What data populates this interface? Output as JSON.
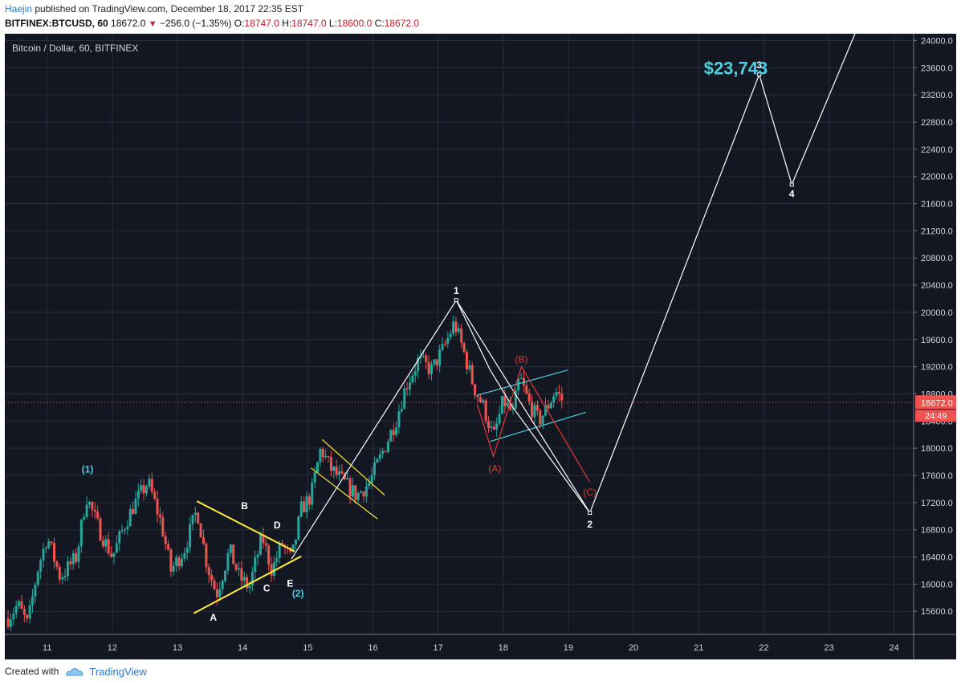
{
  "header": {
    "author": "Haejin",
    "published_text": "published on TradingView.com, December 18, 2017 22:35 EST",
    "symbol": "BITFINEX:BTCUSD, 60",
    "last": "18672.0",
    "change": "−256.0 (−1.35%)",
    "open_label": "O:",
    "open": "18747.0",
    "high_label": "H:",
    "high": "18747.0",
    "low_label": "L:",
    "low": "18600.0",
    "close_label": "C:",
    "close": "18672.0"
  },
  "footer": {
    "created_with": "Created with",
    "brand": "TradingView"
  },
  "colors": {
    "background": "#131722",
    "grid": "#2a2e39",
    "up": "#26a69a",
    "down": "#ef5350",
    "yellow": "#ffeb3b",
    "cyan": "#4dd0e1",
    "white": "#ffffff",
    "red_wave": "#e53935",
    "price_tag": "#ef5350"
  },
  "chart_data": {
    "type": "candlestick",
    "title": "Bitcoin / Dollar, 60, BITFINEX",
    "price_tag": "18672.0",
    "countdown": "24:49",
    "x_ticks": [
      "11",
      "12",
      "13",
      "14",
      "15",
      "16",
      "17",
      "18",
      "19",
      "20",
      "21",
      "22",
      "23",
      "24"
    ],
    "x_tick_values": [
      11,
      12,
      13,
      14,
      15,
      16,
      17,
      18,
      19,
      20,
      21,
      22,
      23,
      24
    ],
    "xlim": [
      10.35,
      24.3
    ],
    "y_ticks": [
      "15600.0",
      "16000.0",
      "16400.0",
      "16800.0",
      "17200.0",
      "17600.0",
      "18000.0",
      "18400.0",
      "18800.0",
      "19200.0",
      "19600.0",
      "20000.0",
      "20400.0",
      "20800.0",
      "21200.0",
      "21600.0",
      "22000.0",
      "22400.0",
      "22800.0",
      "23200.0",
      "23600.0",
      "24000.0"
    ],
    "ylim": [
      15260,
      24100
    ],
    "price_path": [
      [
        10.4,
        15500
      ],
      [
        10.55,
        15700
      ],
      [
        10.7,
        15400
      ],
      [
        10.85,
        16200
      ],
      [
        11.0,
        16700
      ],
      [
        11.2,
        16100
      ],
      [
        11.45,
        16400
      ],
      [
        11.6,
        17300
      ],
      [
        11.8,
        16800
      ],
      [
        12.0,
        16400
      ],
      [
        12.2,
        16900
      ],
      [
        12.35,
        17200
      ],
      [
        12.55,
        17500
      ],
      [
        12.75,
        16900
      ],
      [
        12.9,
        16200
      ],
      [
        13.1,
        16500
      ],
      [
        13.3,
        17100
      ],
      [
        13.45,
        16300
      ],
      [
        13.6,
        15850
      ],
      [
        13.8,
        16500
      ],
      [
        13.95,
        16100
      ],
      [
        14.1,
        15950
      ],
      [
        14.3,
        16700
      ],
      [
        14.45,
        16200
      ],
      [
        14.6,
        16600
      ],
      [
        14.75,
        16350
      ],
      [
        14.9,
        17100
      ],
      [
        15.05,
        17300
      ],
      [
        15.2,
        18000
      ],
      [
        15.35,
        17700
      ],
      [
        15.55,
        17500
      ],
      [
        15.75,
        17300
      ],
      [
        15.95,
        17500
      ],
      [
        16.15,
        17950
      ],
      [
        16.35,
        18400
      ],
      [
        16.5,
        18900
      ],
      [
        16.7,
        19300
      ],
      [
        16.9,
        19150
      ],
      [
        17.1,
        19500
      ],
      [
        17.25,
        19850
      ],
      [
        17.4,
        19400
      ],
      [
        17.55,
        18900
      ],
      [
        17.7,
        18600
      ],
      [
        17.85,
        18150
      ],
      [
        18.0,
        18700
      ],
      [
        18.15,
        18500
      ],
      [
        18.25,
        19050
      ],
      [
        18.4,
        18650
      ],
      [
        18.55,
        18400
      ],
      [
        18.7,
        18650
      ],
      [
        18.8,
        18850
      ],
      [
        18.93,
        18672
      ]
    ],
    "patterns": {
      "triangle": {
        "color": "#ffeb3b",
        "upper": [
          [
            13.3,
            17220
          ],
          [
            14.8,
            16480
          ]
        ],
        "lower": [
          [
            13.25,
            15570
          ],
          [
            14.9,
            16410
          ]
        ],
        "apex": [
          14.95,
          16310
        ],
        "labels": [
          {
            "text": "A",
            "x": 13.55,
            "y": 15510
          },
          {
            "text": "B",
            "x": 14.03,
            "y": 17150
          },
          {
            "text": "C",
            "x": 14.37,
            "y": 15940
          },
          {
            "text": "D",
            "x": 14.53,
            "y": 16870
          },
          {
            "text": "E",
            "x": 14.73,
            "y": 16010
          }
        ]
      },
      "flag": {
        "color": "#ffeb3b",
        "upper": [
          [
            15.22,
            18130
          ],
          [
            16.18,
            17310
          ]
        ],
        "lower": [
          [
            15.05,
            17710
          ],
          [
            16.07,
            16960
          ]
        ]
      },
      "channel": {
        "color": "#4dd0e1",
        "upper": [
          [
            17.6,
            18780
          ],
          [
            18.99,
            19150
          ]
        ],
        "lower": [
          [
            17.8,
            18100
          ],
          [
            19.27,
            18530
          ]
        ]
      },
      "wave_white": {
        "color": "#ffffff",
        "points": [
          [
            14.75,
            16370
          ],
          [
            17.28,
            20180
          ],
          [
            19.33,
            17050
          ],
          [
            21.93,
            23500
          ],
          [
            22.43,
            21880
          ],
          [
            23.4,
            24100
          ]
        ],
        "labels": [
          {
            "text": "1",
            "x": 17.28,
            "y": 20320
          },
          {
            "text": "2",
            "x": 19.33,
            "y": 16880
          },
          {
            "text": "3",
            "x": 21.93,
            "y": 23640
          },
          {
            "text": "4",
            "x": 22.43,
            "y": 21740
          }
        ]
      },
      "wave_white_corrective": {
        "color": "#ffffff",
        "points": [
          [
            17.28,
            20180
          ],
          [
            17.8,
            19150
          ],
          [
            18.15,
            18600
          ],
          [
            19.33,
            17050
          ]
        ]
      },
      "wave_red": {
        "color": "#e53935",
        "points": [
          [
            17.6,
            18650
          ],
          [
            17.85,
            17880
          ],
          [
            18.28,
            19200
          ],
          [
            19.33,
            17500
          ]
        ],
        "labels": [
          {
            "text": "(A)",
            "x": 17.87,
            "y": 17700
          },
          {
            "text": "(B)",
            "x": 18.28,
            "y": 19310
          },
          {
            "text": "(C)",
            "x": 19.33,
            "y": 17350
          }
        ]
      },
      "cyan_labels": [
        {
          "text": "(1)",
          "x": 11.62,
          "y": 17690
        },
        {
          "text": "(2)",
          "x": 14.85,
          "y": 15860
        }
      ],
      "target": {
        "text": "$23,743",
        "x": 21.08,
        "y": 23600,
        "color": "#4dd0e1"
      }
    }
  }
}
